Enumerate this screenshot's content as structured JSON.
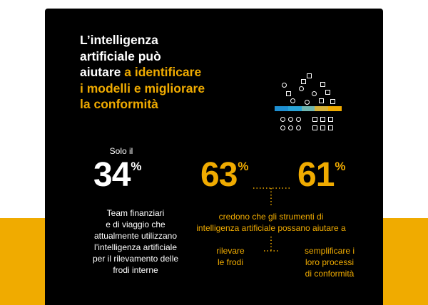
{
  "title": {
    "line1": "L’intelligenza",
    "line2": "artificiale può",
    "line3_white": "aiutare ",
    "line3_accent": "a identificare",
    "line4": "i modelli e migliorare",
    "line5": "la conformità"
  },
  "stat_left": {
    "prefix": "Solo il",
    "value": "34",
    "unit": "%",
    "desc_lines": [
      "Team finanziari",
      "e di viaggio che",
      "attualmente utilizzano",
      "l’intelligenza artificiale",
      "per il rilevamento delle",
      "frodi interne"
    ]
  },
  "stat_mid": {
    "value": "63",
    "unit": "%"
  },
  "stat_right": {
    "value": "61",
    "unit": "%"
  },
  "shared_desc": {
    "line1": "credono che gli strumenti di",
    "line2": "intelligenza artificiale possano aiutare a"
  },
  "sub_left": {
    "line1": "rilevare",
    "line2": "le frodi"
  },
  "sub_right": {
    "line1": "semplificare i",
    "line2": "loro processi",
    "line3": "di conformità"
  },
  "colors": {
    "background": "#000000",
    "accent": "#f0ab00",
    "band": "#f0ab00",
    "bar_segments": [
      "#1f8fd1",
      "#29a3d6",
      "#6fb6b0",
      "#d6b23a",
      "#f0ab00"
    ]
  }
}
